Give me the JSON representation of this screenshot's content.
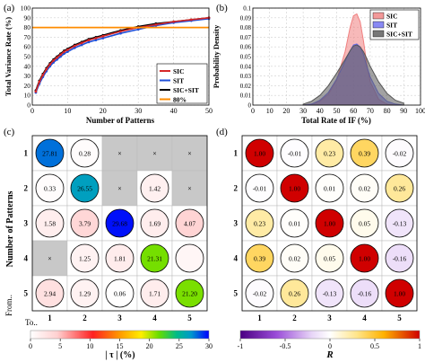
{
  "chart_data": [
    {
      "panel": "(a)",
      "type": "line",
      "xlabel": "Number of Patterns",
      "ylabel": "Total Variance Rate (%)",
      "xlim": [
        0,
        50
      ],
      "ylim": [
        0,
        100
      ],
      "xticks": [
        0,
        10,
        20,
        30,
        40,
        50
      ],
      "yticks": [
        0,
        10,
        20,
        30,
        40,
        50,
        60,
        70,
        80,
        90,
        100
      ],
      "grid": true,
      "legend_position": "bottom-right",
      "x": [
        1,
        2,
        3,
        4,
        5,
        6,
        7,
        8,
        9,
        10,
        12,
        14,
        16,
        18,
        20,
        25,
        30,
        35,
        40,
        45,
        50
      ],
      "series": [
        {
          "name": "SIC",
          "color": "#d62728",
          "values": [
            14,
            24,
            31,
            37,
            42,
            46,
            49,
            52,
            55,
            57,
            61,
            64,
            67,
            69,
            71,
            76,
            80,
            83,
            86,
            88,
            90
          ]
        },
        {
          "name": "SIT",
          "color": "#1f4fd8",
          "values": [
            13,
            22,
            29,
            35,
            40,
            44,
            47,
            50,
            53,
            55,
            59,
            62,
            65,
            67,
            69,
            74,
            78,
            82,
            85,
            87,
            89
          ]
        },
        {
          "name": "SIC+SIT",
          "color": "#000000",
          "values": [
            15,
            25,
            32,
            38,
            43,
            47,
            50,
            53,
            56,
            58,
            62,
            65,
            68,
            70,
            72,
            77,
            81,
            84,
            86,
            88,
            90
          ]
        },
        {
          "name": "80%",
          "color": "#ff8c00",
          "constant": 80
        }
      ]
    },
    {
      "panel": "(b)",
      "type": "area",
      "xlabel": "Total Rate of IF (%)",
      "ylabel": "Probability Density",
      "xlim": [
        0,
        100
      ],
      "ylim": [
        0,
        0.1
      ],
      "xticks": [
        0,
        10,
        20,
        30,
        40,
        50,
        60,
        70,
        80,
        90,
        100
      ],
      "yticks": [
        0,
        0.01,
        0.02,
        0.03,
        0.04,
        0.05,
        0.06,
        0.07,
        0.08,
        0.09,
        0.1
      ],
      "ytick_labels": [
        "0",
        "0.01",
        "0.02",
        "0.03",
        "0.04",
        "0.05",
        "0.06",
        "0.07",
        "0.08",
        "0.09",
        "0.1"
      ],
      "grid": true,
      "legend_position": "top-right",
      "x": [
        30,
        35,
        40,
        45,
        50,
        55,
        58,
        60,
        62,
        64,
        66,
        68,
        70,
        75,
        80,
        85,
        90
      ],
      "series": [
        {
          "name": "SIC",
          "color": "#f08080",
          "values": [
            0,
            0.001,
            0.004,
            0.011,
            0.026,
            0.055,
            0.08,
            0.092,
            0.094,
            0.086,
            0.066,
            0.042,
            0.024,
            0.006,
            0.001,
            0,
            0
          ]
        },
        {
          "name": "SIT",
          "color": "#6b6bf0",
          "values": [
            0,
            0.001,
            0.005,
            0.013,
            0.027,
            0.045,
            0.056,
            0.062,
            0.063,
            0.06,
            0.052,
            0.04,
            0.029,
            0.012,
            0.004,
            0.001,
            0
          ]
        },
        {
          "name": "SIC+SIT",
          "color": "#555555",
          "values": [
            0.001,
            0.004,
            0.01,
            0.02,
            0.033,
            0.047,
            0.056,
            0.061,
            0.062,
            0.06,
            0.055,
            0.048,
            0.04,
            0.024,
            0.012,
            0.005,
            0.002
          ]
        }
      ]
    },
    {
      "panel": "(c)",
      "type": "heatmap",
      "ylabel": "Number of Patterns",
      "row_labels": [
        "1",
        "2",
        "3",
        "4",
        "5"
      ],
      "col_labels": [
        "1",
        "2",
        "3",
        "4",
        "5"
      ],
      "from_label": "From..",
      "to_label": "To..",
      "values": [
        [
          27.81,
          0.28,
          null,
          null,
          null
        ],
        [
          0.33,
          26.55,
          null,
          1.42,
          null
        ],
        [
          1.58,
          3.79,
          29.68,
          1.69,
          4.07
        ],
        [
          null,
          1.25,
          1.81,
          21.31,
          0.82
        ],
        [
          2.94,
          1.29,
          0.06,
          1.71,
          21.2
        ]
      ],
      "labels": [
        [
          "27.81",
          "0.28",
          "×",
          "×",
          "×"
        ],
        [
          "0.33",
          "26.55",
          "×",
          "1.42",
          "×"
        ],
        [
          "1.58",
          "3.79",
          "29.68",
          "1.69",
          "4.07"
        ],
        [
          "×",
          "1.25",
          "1.81",
          "21.31",
          ""
        ],
        [
          "2.94",
          "1.29",
          "0.06",
          "1.71",
          "21.20"
        ]
      ],
      "colorbar": {
        "label": "| τ | (%)",
        "range": [
          0,
          30
        ],
        "ticks": [
          "0",
          "5",
          "10",
          "15",
          "20",
          "25",
          "30"
        ]
      }
    },
    {
      "panel": "(d)",
      "type": "heatmap",
      "row_labels": [
        "1",
        "2",
        "3",
        "4",
        "5"
      ],
      "col_labels": [
        "1",
        "2",
        "3",
        "4",
        "5"
      ],
      "values": [
        [
          1.0,
          -0.01,
          0.23,
          0.39,
          -0.02
        ],
        [
          -0.01,
          1.0,
          0.01,
          0.02,
          0.26
        ],
        [
          0.23,
          0.01,
          1.0,
          0.05,
          -0.13
        ],
        [
          0.39,
          0.02,
          0.05,
          1.0,
          -0.16
        ],
        [
          -0.02,
          0.26,
          -0.13,
          -0.16,
          1.0
        ]
      ],
      "labels": [
        [
          "1.00",
          "-0.01",
          "0.23",
          "0.39",
          "-0.02"
        ],
        [
          "-0.01",
          "1.00",
          "0.01",
          "0.02",
          "0.26"
        ],
        [
          "0.23",
          "0.01",
          "1.00",
          "0.05",
          "-0.13"
        ],
        [
          "0.39",
          "0.02",
          "0.05",
          "1.00",
          "-0.16"
        ],
        [
          "-0.02",
          "0.26",
          "-0.13",
          "-0.16",
          "1.00"
        ]
      ],
      "colorbar": {
        "label": "R",
        "range": [
          -1,
          1
        ],
        "ticks": [
          "-1",
          "-0.5",
          "0",
          "0.5",
          "1"
        ]
      }
    }
  ]
}
